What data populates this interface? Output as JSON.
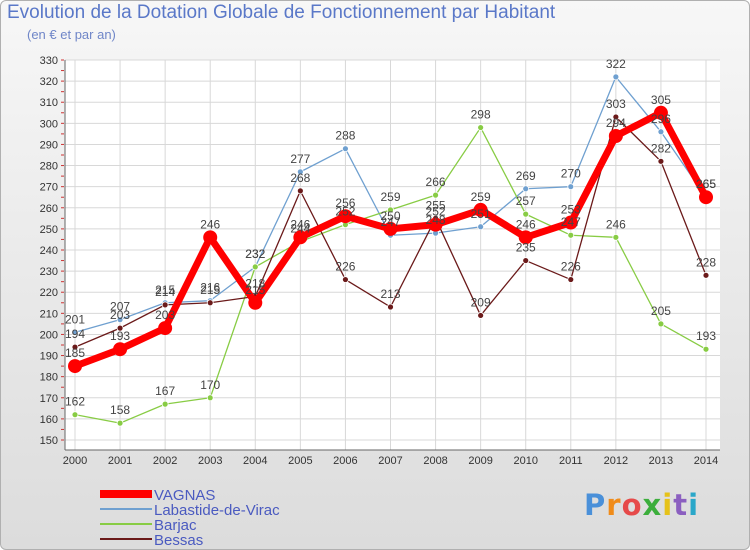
{
  "title": "Evolution de la Dotation Globale de Fonctionnement par Habitant",
  "subtitle": "(en € et par an)",
  "logo": "Proxiti",
  "chart_data": {
    "type": "line",
    "title": "Evolution de la Dotation Globale de Fonctionnement par Habitant",
    "subtitle": "(en € et par an)",
    "x": [
      "2000",
      "2001",
      "2002",
      "2003",
      "2004",
      "2005",
      "2006",
      "2007",
      "2008",
      "2009",
      "2010",
      "2011",
      "2012",
      "2013",
      "2014"
    ],
    "ylim": [
      150,
      330
    ],
    "yticks": [
      150,
      160,
      170,
      180,
      190,
      200,
      210,
      220,
      230,
      240,
      250,
      260,
      270,
      280,
      290,
      300,
      310,
      320,
      330
    ],
    "grid": true,
    "legend_position": "bottom-left",
    "series": [
      {
        "name": "VAGNAS",
        "color": "#ff0000",
        "values": [
          185,
          193,
          203,
          246,
          215,
          246,
          256,
          250,
          252,
          259,
          246,
          253,
          294,
          305,
          265
        ]
      },
      {
        "name": "Labastide-de-Virac",
        "color": "#6fa0d0",
        "values": [
          201,
          207,
          215,
          216,
          232,
          277,
          288,
          247,
          248,
          251,
          269,
          270,
          322,
          296,
          265
        ]
      },
      {
        "name": "Barjac",
        "color": "#88cc44",
        "values": [
          162,
          158,
          167,
          170,
          232,
          244,
          252,
          259,
          266,
          298,
          257,
          247,
          246,
          205,
          193
        ]
      },
      {
        "name": "Bessas",
        "color": "#6b1a1a",
        "values": [
          194,
          203,
          214,
          215,
          218,
          268,
          226,
          213,
          255,
          209,
          235,
          226,
          303,
          282,
          228
        ]
      }
    ]
  }
}
